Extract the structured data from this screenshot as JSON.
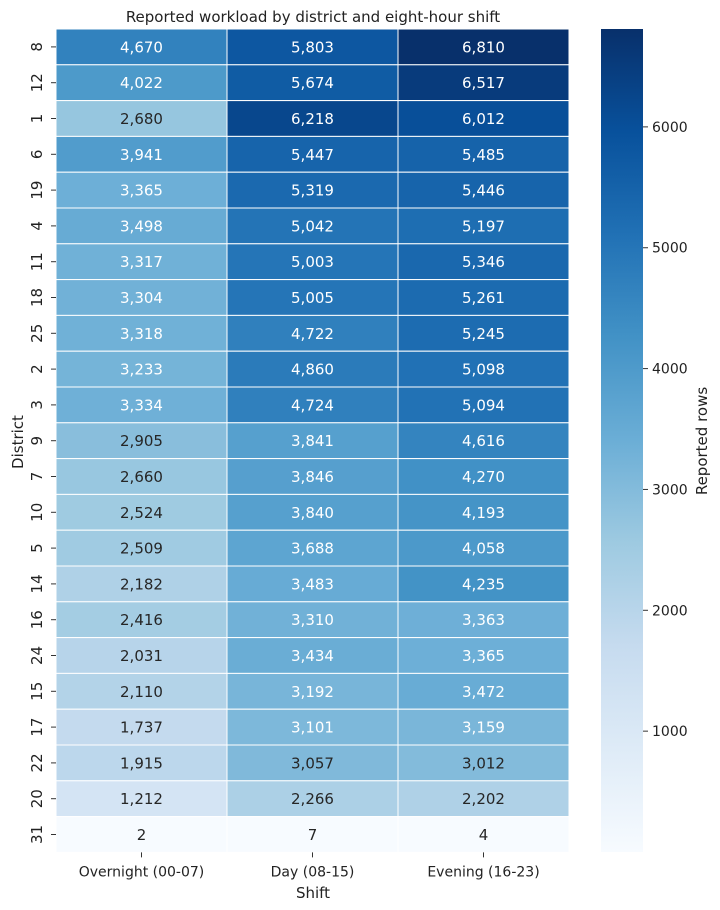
{
  "chart_data": {
    "type": "heatmap",
    "title": "Reported workload by district and eight-hour shift",
    "xlabel": "Shift",
    "ylabel": "District",
    "colorbar_label": "Reported rows",
    "colorbar_ticks": [
      "1000",
      "2000",
      "3000",
      "4000",
      "5000",
      "6000"
    ],
    "colorbar_tick_values": [
      1000,
      2000,
      3000,
      4000,
      5000,
      6000
    ],
    "colorbar_range": [
      0,
      6810
    ],
    "colormap": "Blues",
    "columns": [
      "Overnight (00-07)",
      "Day (08-15)",
      "Evening (16-23)"
    ],
    "rows": [
      "8",
      "12",
      "1",
      "6",
      "19",
      "4",
      "11",
      "18",
      "25",
      "2",
      "3",
      "9",
      "7",
      "10",
      "5",
      "14",
      "16",
      "24",
      "15",
      "17",
      "22",
      "20",
      "31"
    ],
    "values": [
      [
        4670,
        5803,
        6810
      ],
      [
        4022,
        5674,
        6517
      ],
      [
        2680,
        6218,
        6012
      ],
      [
        3941,
        5447,
        5485
      ],
      [
        3365,
        5319,
        5446
      ],
      [
        3498,
        5042,
        5197
      ],
      [
        3317,
        5003,
        5346
      ],
      [
        3304,
        5005,
        5261
      ],
      [
        3318,
        4722,
        5245
      ],
      [
        3233,
        4860,
        5098
      ],
      [
        3334,
        4724,
        5094
      ],
      [
        2905,
        3841,
        4616
      ],
      [
        2660,
        3846,
        4270
      ],
      [
        2524,
        3840,
        4193
      ],
      [
        2509,
        3688,
        4058
      ],
      [
        2182,
        3483,
        4235
      ],
      [
        2416,
        3310,
        3363
      ],
      [
        2031,
        3434,
        3365
      ],
      [
        2110,
        3192,
        3472
      ],
      [
        1737,
        3101,
        3159
      ],
      [
        1915,
        3057,
        3012
      ],
      [
        1212,
        2266,
        2202
      ],
      [
        2,
        7,
        4
      ]
    ],
    "value_labels": [
      [
        "4,670",
        "5,803",
        "6,810"
      ],
      [
        "4,022",
        "5,674",
        "6,517"
      ],
      [
        "2,680",
        "6,218",
        "6,012"
      ],
      [
        "3,941",
        "5,447",
        "5,485"
      ],
      [
        "3,365",
        "5,319",
        "5,446"
      ],
      [
        "3,498",
        "5,042",
        "5,197"
      ],
      [
        "3,317",
        "5,003",
        "5,346"
      ],
      [
        "3,304",
        "5,005",
        "5,261"
      ],
      [
        "3,318",
        "4,722",
        "5,245"
      ],
      [
        "3,233",
        "4,860",
        "5,098"
      ],
      [
        "3,334",
        "4,724",
        "5,094"
      ],
      [
        "2,905",
        "3,841",
        "4,616"
      ],
      [
        "2,660",
        "3,846",
        "4,270"
      ],
      [
        "2,524",
        "3,840",
        "4,193"
      ],
      [
        "2,509",
        "3,688",
        "4,058"
      ],
      [
        "2,182",
        "3,483",
        "4,235"
      ],
      [
        "2,416",
        "3,310",
        "3,363"
      ],
      [
        "2,031",
        "3,434",
        "3,365"
      ],
      [
        "2,110",
        "3,192",
        "3,472"
      ],
      [
        "1,737",
        "3,101",
        "3,159"
      ],
      [
        "1,915",
        "3,057",
        "3,012"
      ],
      [
        "1,212",
        "2,266",
        "2,202"
      ],
      [
        "2",
        "7",
        "4"
      ]
    ]
  }
}
